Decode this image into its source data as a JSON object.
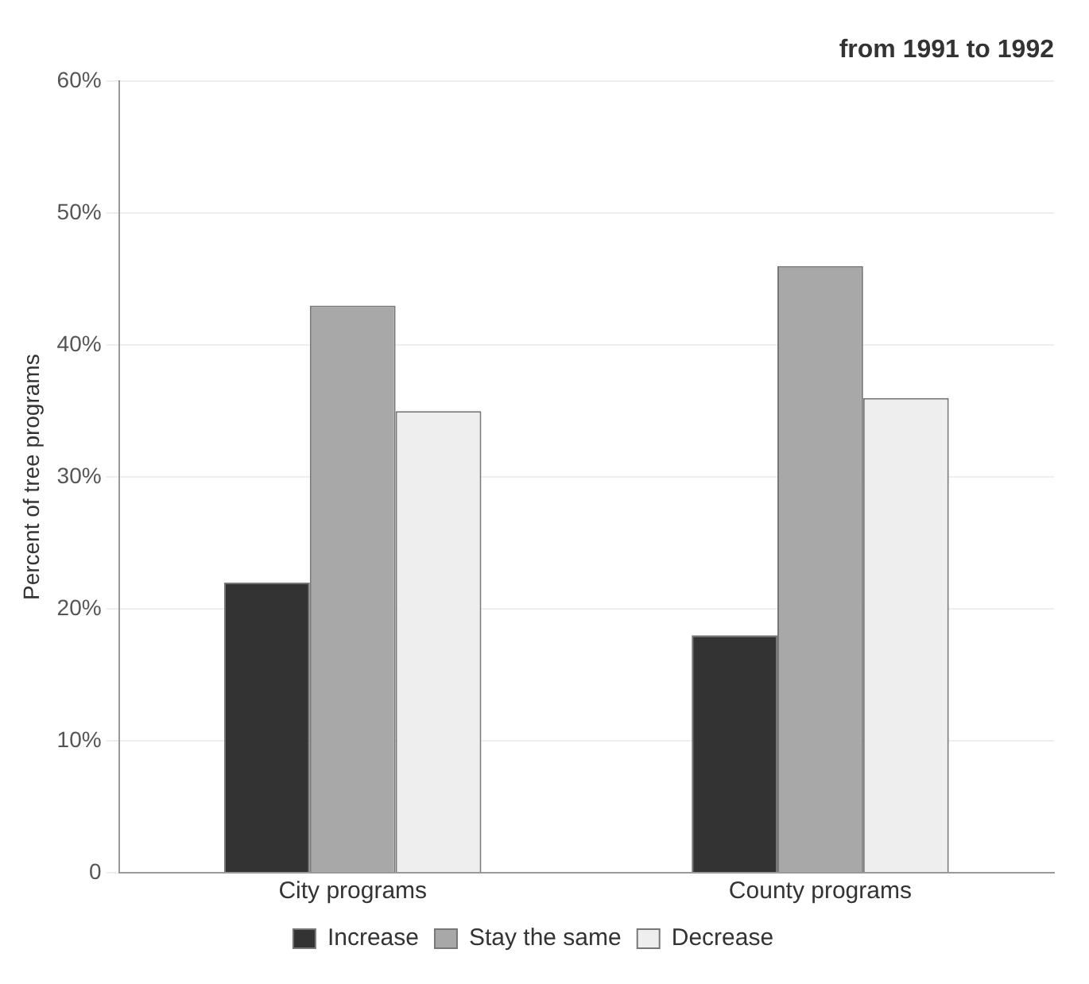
{
  "chart_data": {
    "type": "bar",
    "title": "from 1991 to 1992",
    "ylabel": "Percent of tree programs",
    "categories": [
      "City programs",
      "County programs"
    ],
    "series": [
      {
        "name": "Increase",
        "color": "#333333",
        "values": [
          22,
          18
        ]
      },
      {
        "name": "Stay the same",
        "color": "#a8a8a8",
        "values": [
          43,
          46
        ]
      },
      {
        "name": "Decrease",
        "color": "#eeeeee",
        "values": [
          35,
          36
        ]
      }
    ],
    "ylim": [
      0,
      60
    ],
    "yticks": [
      {
        "value": 0,
        "label": "0"
      },
      {
        "value": 10,
        "label": "10%"
      },
      {
        "value": 20,
        "label": "20%"
      },
      {
        "value": 30,
        "label": "30%"
      },
      {
        "value": 40,
        "label": "40%"
      },
      {
        "value": 50,
        "label": "50%"
      },
      {
        "value": 60,
        "label": "60%"
      }
    ],
    "grid": "y",
    "legend": "bottom"
  }
}
